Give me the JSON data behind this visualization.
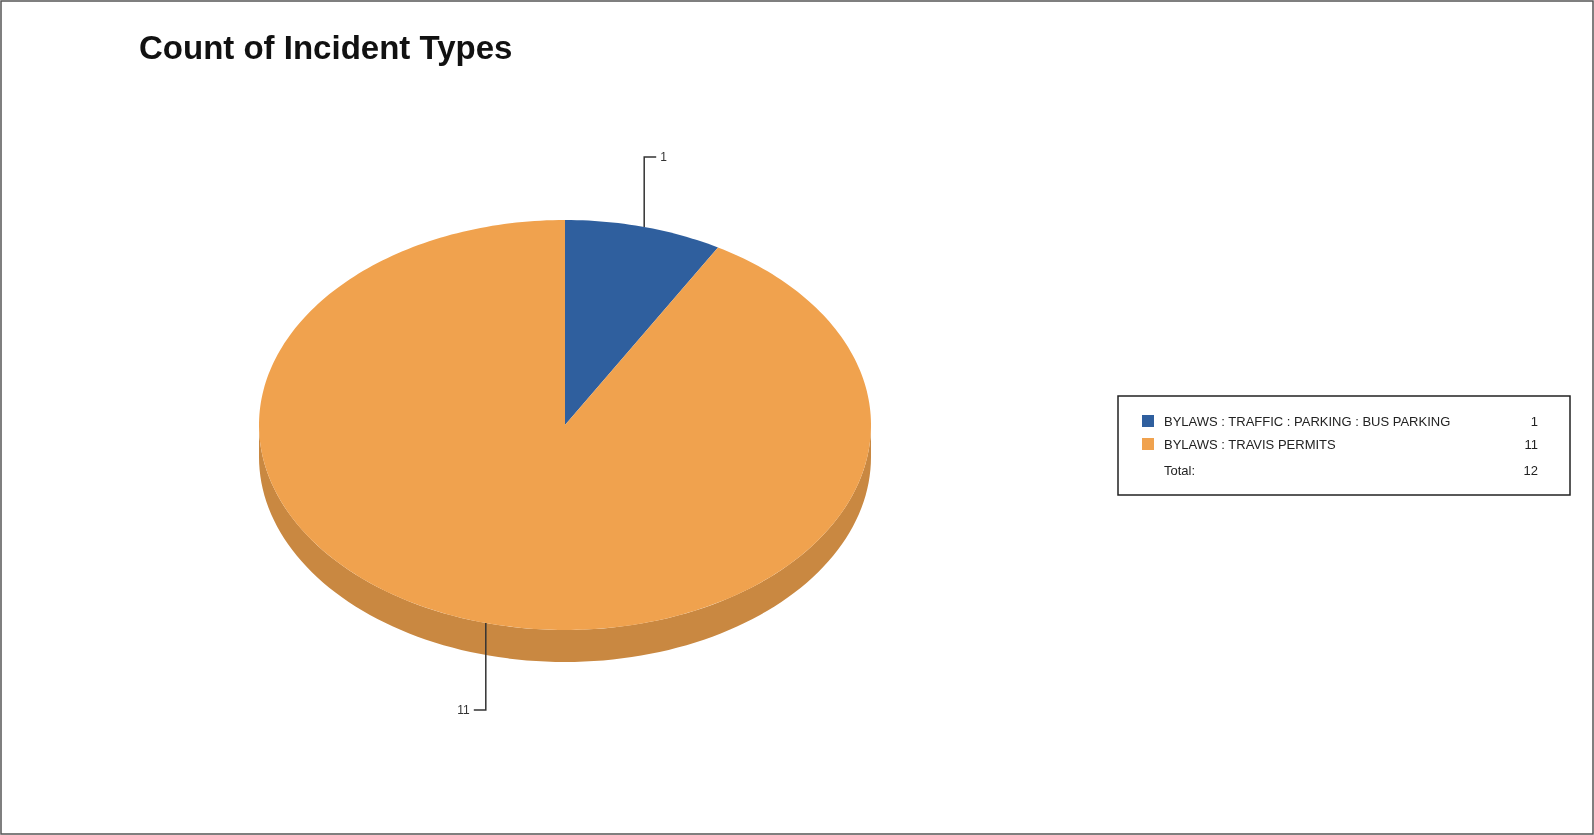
{
  "chart_data": {
    "type": "pie",
    "title": "Count of Incident Types",
    "categories": [
      "BYLAWS : TRAFFIC : PARKING : BUS PARKING",
      "BYLAWS : TRAVIS PERMITS"
    ],
    "values": [
      1,
      11
    ],
    "colors": [
      "#2f5f9e",
      "#f0a24e"
    ],
    "value_labels": [
      "1",
      "11"
    ],
    "legend": "right",
    "annotations": [
      "Total:",
      "12"
    ]
  }
}
